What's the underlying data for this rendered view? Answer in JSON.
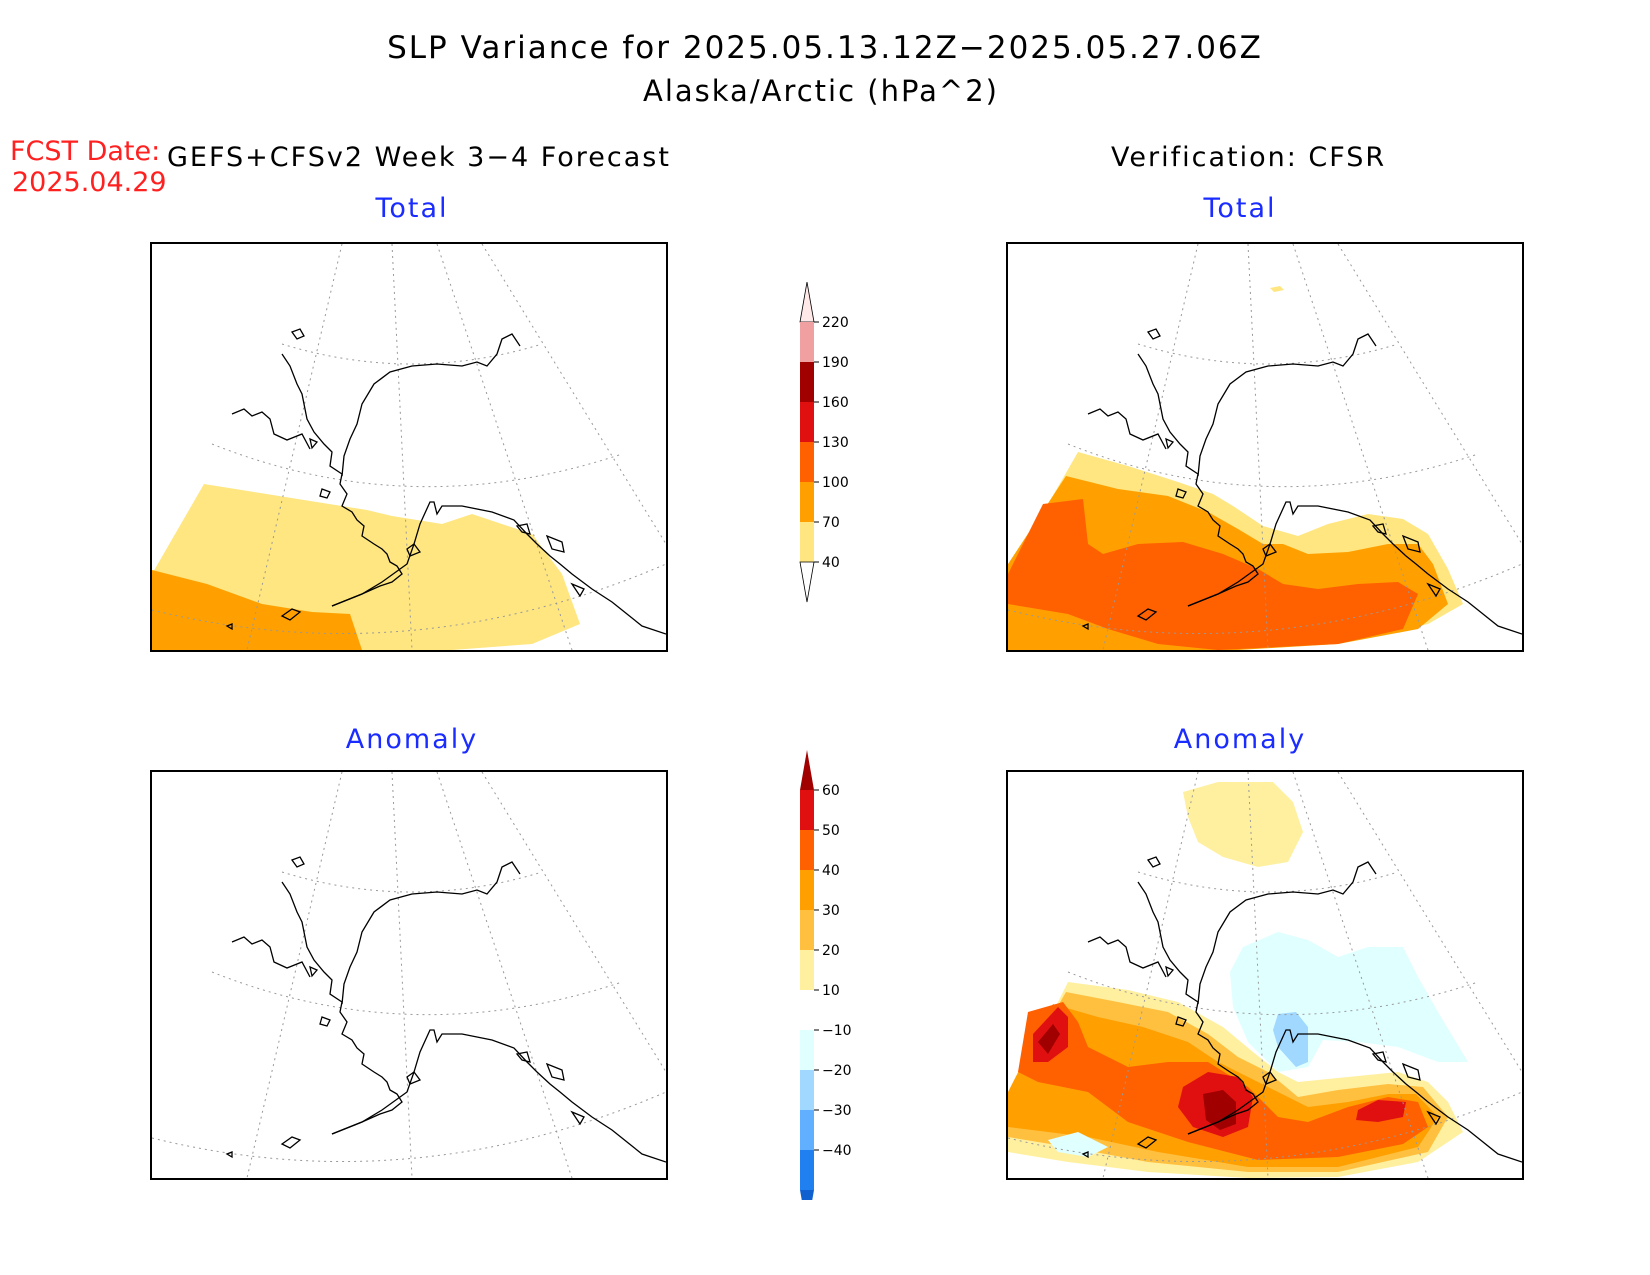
{
  "title": "SLP Variance for 2025.05.13.12Z−2025.05.27.06Z",
  "subtitle": "Alaska/Arctic (hPa^2)",
  "fcst_date_label": "FCST Date:",
  "fcst_date_value": "2025.04.29",
  "left_header": "GEFS+CFSv2 Week 3−4 Forecast",
  "right_header": "Verification: CFSR",
  "panels": {
    "forecast_total": "Total",
    "verification_total": "Total",
    "forecast_anomaly": "Anomaly",
    "verification_anomaly": "Anomaly"
  },
  "colorbars": {
    "total": {
      "levels": [
        "40",
        "70",
        "100",
        "130",
        "160",
        "190",
        "220"
      ],
      "colors": [
        "#ffe680",
        "#ffa000",
        "#ff6000",
        "#e01010",
        "#a00000",
        "#f0a0a0",
        "#ffe8e8"
      ]
    },
    "anomaly": {
      "levels": [
        "60",
        "50",
        "40",
        "30",
        "20",
        "10",
        "−10",
        "−20",
        "−30",
        "−40"
      ],
      "colors": [
        "#a00000",
        "#e01010",
        "#ff6000",
        "#ffa000",
        "#ffc040",
        "#fff0a0",
        "#ffffff",
        "#e0ffff",
        "#a0d8ff",
        "#60b0ff",
        "#2080f0",
        "#1060d0"
      ]
    }
  },
  "fill_colors": {
    "pale_yellow": "#ffe680",
    "orange": "#ffa000",
    "dark_orange": "#ff6000",
    "red": "#e01010",
    "dark_red": "#a00000",
    "light_cyan": "#e0ffff",
    "light_blue": "#a0d8ff"
  }
}
